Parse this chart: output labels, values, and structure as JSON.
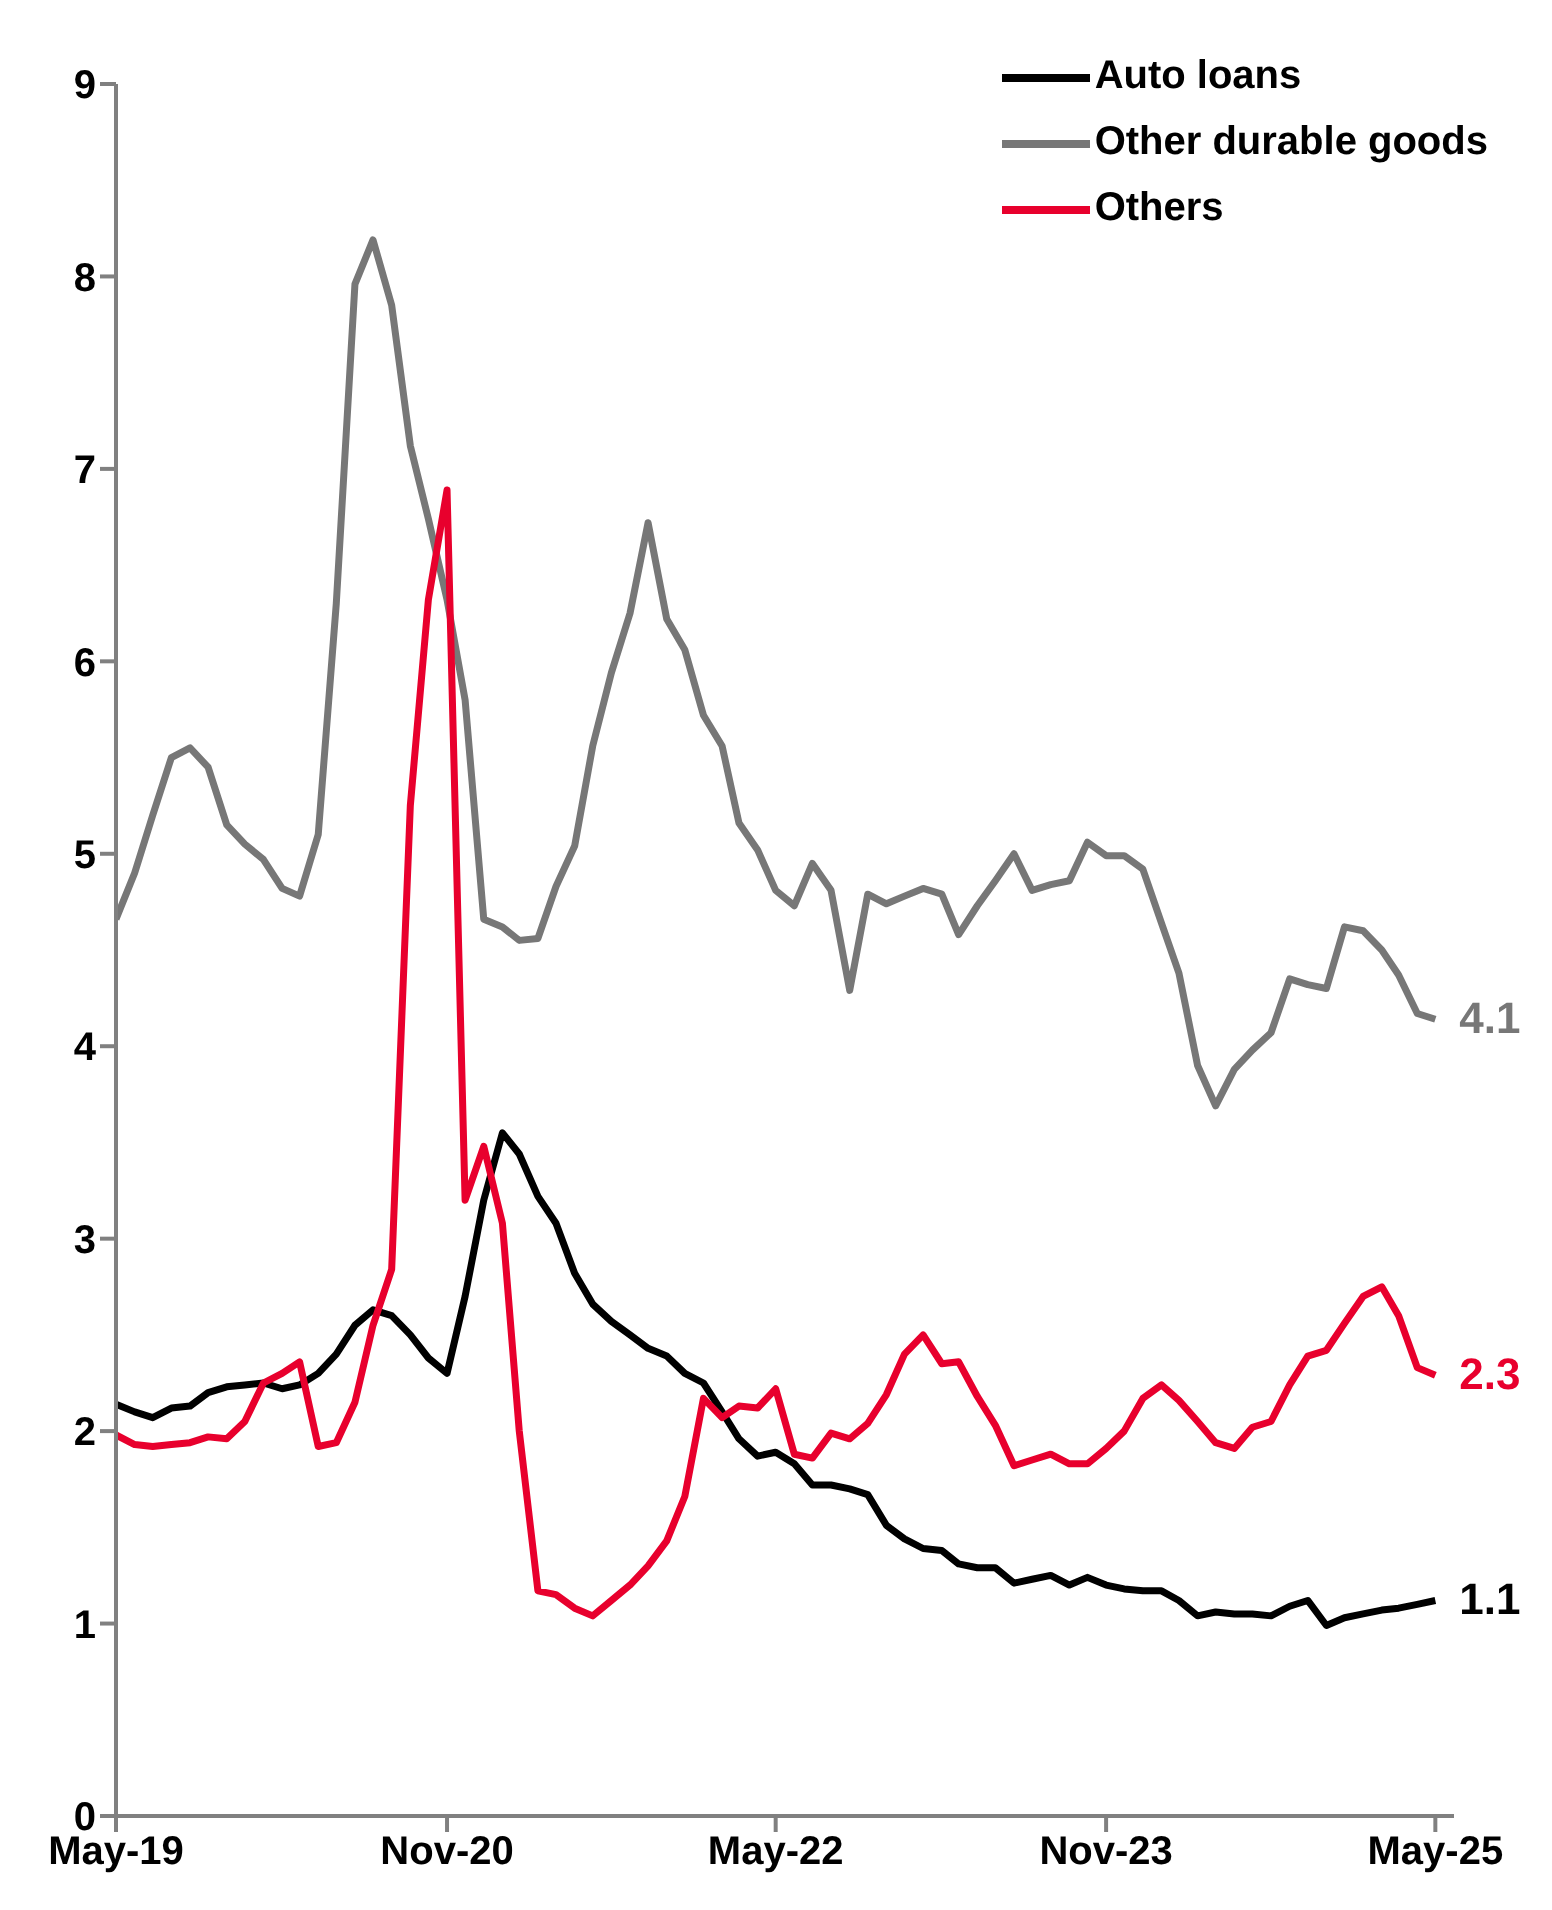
{
  "chart_data": {
    "type": "line",
    "x": [
      "2019-05",
      "2019-06",
      "2019-07",
      "2019-08",
      "2019-09",
      "2019-10",
      "2019-11",
      "2019-12",
      "2020-01",
      "2020-02",
      "2020-03",
      "2020-04",
      "2020-05",
      "2020-06",
      "2020-07",
      "2020-08",
      "2020-09",
      "2020-10",
      "2020-11",
      "2020-12",
      "2021-01",
      "2021-02",
      "2021-03",
      "2021-04",
      "2021-05",
      "2021-06",
      "2021-07",
      "2021-08",
      "2021-09",
      "2021-10",
      "2021-11",
      "2021-12",
      "2022-01",
      "2022-02",
      "2022-03",
      "2022-04",
      "2022-05",
      "2022-06",
      "2022-07",
      "2022-08",
      "2022-09",
      "2022-10",
      "2022-11",
      "2022-12",
      "2023-01",
      "2023-02",
      "2023-03",
      "2023-04",
      "2023-05",
      "2023-06",
      "2023-07",
      "2023-08",
      "2023-09",
      "2023-10",
      "2023-11",
      "2023-12",
      "2024-01",
      "2024-02",
      "2024-03",
      "2024-04",
      "2024-05",
      "2024-06",
      "2024-07",
      "2024-08",
      "2024-09",
      "2024-10",
      "2024-11",
      "2024-12",
      "2025-01",
      "2025-02",
      "2025-03",
      "2025-04",
      "2025-05"
    ],
    "series": [
      {
        "name": "Auto loans",
        "color": "#000000",
        "values": [
          2.14,
          2.1,
          2.07,
          2.12,
          2.13,
          2.2,
          2.23,
          2.24,
          2.25,
          2.22,
          2.24,
          2.3,
          2.4,
          2.55,
          2.63,
          2.6,
          2.5,
          2.38,
          2.3,
          2.7,
          3.2,
          3.55,
          3.44,
          3.22,
          3.08,
          2.82,
          2.66,
          2.57,
          2.5,
          2.43,
          2.39,
          2.3,
          2.25,
          2.1,
          1.96,
          1.87,
          1.89,
          1.83,
          1.72,
          1.72,
          1.7,
          1.67,
          1.51,
          1.44,
          1.39,
          1.38,
          1.31,
          1.29,
          1.29,
          1.21,
          1.23,
          1.25,
          1.2,
          1.24,
          1.2,
          1.18,
          1.17,
          1.17,
          1.12,
          1.04,
          1.06,
          1.05,
          1.05,
          1.04,
          1.09,
          1.12,
          0.99,
          1.03,
          1.05,
          1.07,
          1.08,
          1.1,
          1.12
        ],
        "value_labels": [
          null,
          null,
          null,
          null,
          null,
          null,
          null,
          null,
          null,
          null,
          null,
          null,
          null,
          null,
          null,
          null,
          null,
          null,
          null,
          null,
          null,
          null,
          null,
          null,
          null,
          null,
          null,
          null,
          null,
          null,
          null,
          null,
          null,
          null,
          null,
          null,
          null,
          null,
          null,
          null,
          null,
          null,
          null,
          null,
          null,
          null,
          null,
          null,
          null,
          null,
          null,
          null,
          null,
          null,
          null,
          null,
          null,
          null,
          null,
          null,
          null,
          null,
          null,
          null,
          null,
          null,
          null,
          null,
          null,
          null,
          null,
          null,
          "1.1"
        ]
      },
      {
        "name": "Other durable goods",
        "color": "#777777",
        "values": [
          4.66,
          4.9,
          5.2,
          5.5,
          5.55,
          5.45,
          5.15,
          5.05,
          4.97,
          4.82,
          4.78,
          5.1,
          6.3,
          7.96,
          8.19,
          7.85,
          7.12,
          6.74,
          6.32,
          5.8,
          4.66,
          4.62,
          4.55,
          4.56,
          4.83,
          5.04,
          5.56,
          5.94,
          6.25,
          6.72,
          6.22,
          6.06,
          5.72,
          5.56,
          5.16,
          5.02,
          4.81,
          4.73,
          4.95,
          4.81,
          4.29,
          4.79,
          4.74,
          4.78,
          4.82,
          4.79,
          4.58,
          4.73,
          4.86,
          5.0,
          4.81,
          4.84,
          4.86,
          5.06,
          4.99,
          4.99,
          4.92,
          4.64,
          4.38,
          3.9,
          3.69,
          3.88,
          3.98,
          4.07,
          4.35,
          4.32,
          4.3,
          4.62,
          4.6,
          4.5,
          4.37,
          4.17,
          4.14
        ],
        "value_labels": [
          null,
          null,
          null,
          null,
          null,
          null,
          null,
          null,
          null,
          null,
          null,
          null,
          null,
          null,
          null,
          null,
          null,
          null,
          null,
          null,
          null,
          null,
          null,
          null,
          null,
          null,
          null,
          null,
          null,
          null,
          null,
          null,
          null,
          null,
          null,
          null,
          null,
          null,
          null,
          null,
          null,
          null,
          null,
          null,
          null,
          null,
          null,
          null,
          null,
          null,
          null,
          null,
          null,
          null,
          null,
          null,
          null,
          null,
          null,
          null,
          null,
          null,
          null,
          null,
          null,
          null,
          null,
          null,
          null,
          null,
          null,
          null,
          "4.1"
        ]
      },
      {
        "name": "Others",
        "color": "#e8002d",
        "values": [
          1.98,
          1.93,
          1.92,
          1.93,
          1.94,
          1.97,
          1.96,
          2.05,
          2.25,
          2.3,
          2.36,
          1.92,
          1.94,
          2.15,
          2.55,
          2.84,
          5.25,
          6.32,
          6.89,
          3.2,
          3.48,
          3.08,
          2.0,
          1.17,
          1.15,
          1.08,
          1.04,
          1.12,
          1.2,
          1.3,
          1.43,
          1.66,
          2.17,
          2.07,
          2.13,
          2.12,
          2.22,
          1.88,
          1.86,
          1.99,
          1.96,
          2.04,
          2.19,
          2.4,
          2.5,
          2.35,
          2.36,
          2.18,
          2.03,
          1.82,
          1.85,
          1.88,
          1.83,
          1.83,
          1.91,
          2.0,
          2.17,
          2.24,
          2.16,
          2.05,
          1.94,
          1.91,
          2.02,
          2.05,
          2.24,
          2.39,
          2.42,
          2.56,
          2.7,
          2.75,
          2.6,
          2.33,
          2.29
        ],
        "value_labels": [
          null,
          null,
          null,
          null,
          null,
          null,
          null,
          null,
          null,
          null,
          null,
          null,
          null,
          null,
          null,
          null,
          null,
          null,
          null,
          null,
          null,
          null,
          null,
          null,
          null,
          null,
          null,
          null,
          null,
          null,
          null,
          null,
          null,
          null,
          null,
          null,
          null,
          null,
          null,
          null,
          null,
          null,
          null,
          null,
          null,
          null,
          null,
          null,
          null,
          null,
          null,
          null,
          null,
          null,
          null,
          null,
          null,
          null,
          null,
          null,
          null,
          null,
          null,
          null,
          null,
          null,
          null,
          null,
          null,
          null,
          null,
          null,
          "2.3"
        ]
      }
    ],
    "xlim": [
      "2019-05",
      "2025-06"
    ],
    "xticks": [
      {
        "value": "2019-05",
        "label": "May-19"
      },
      {
        "value": "2020-11",
        "label": "Nov-20"
      },
      {
        "value": "2022-05",
        "label": "May-22"
      },
      {
        "value": "2023-11",
        "label": "Nov-23"
      },
      {
        "value": "2025-05",
        "label": "May-25"
      }
    ],
    "ylim": [
      0,
      9
    ],
    "yticks": [
      0,
      1,
      2,
      3,
      4,
      5,
      6,
      7,
      8,
      9
    ],
    "grid": false,
    "legend": "top right",
    "marker": "none",
    "line_style": "solid"
  }
}
